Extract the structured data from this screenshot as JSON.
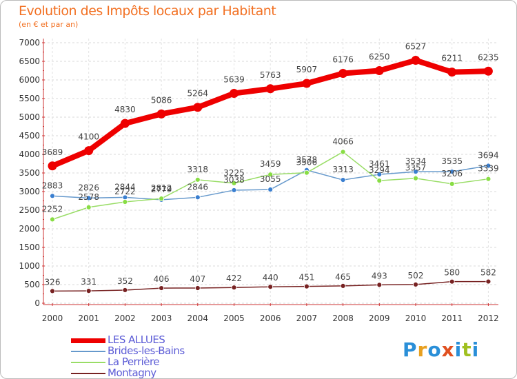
{
  "chart_data": {
    "type": "line",
    "title": "Evolution des Impôts locaux par Habitant",
    "subtitle": "(en € et par an)",
    "x": [
      "2000",
      "2001",
      "2002",
      "2003",
      "2004",
      "2005",
      "2006",
      "2007",
      "2008",
      "2009",
      "2010",
      "2011",
      "2012"
    ],
    "yticks": [
      "0",
      "500",
      "1000",
      "1500",
      "2000",
      "2500",
      "3000",
      "3500",
      "4000",
      "4500",
      "5000",
      "5500",
      "6000",
      "6500",
      "7000"
    ],
    "ylim": [
      0,
      7000
    ],
    "series": [
      {
        "name": "LES ALLUES",
        "color": "#ee0000",
        "values": [
          3689,
          4100,
          4830,
          5086,
          5264,
          5639,
          5763,
          5907,
          6176,
          6250,
          6527,
          6211,
          6235
        ]
      },
      {
        "name": "Brides-les-Bains",
        "color": "#6699cc",
        "values": [
          2883,
          2826,
          2844,
          2779,
          2846,
          3038,
          3055,
          3578,
          3313,
          3461,
          3534,
          3535,
          3694
        ]
      },
      {
        "name": "La Perrière",
        "color": "#99dd66",
        "values": [
          2252,
          2578,
          2722,
          2812,
          3318,
          3225,
          3459,
          3506,
          4066,
          3294,
          3357,
          3206,
          3339
        ]
      },
      {
        "name": "Montagny",
        "color": "#772222",
        "values": [
          326,
          331,
          352,
          406,
          407,
          422,
          440,
          451,
          465,
          493,
          502,
          580,
          582
        ]
      }
    ]
  },
  "logo": {
    "text": "Proxiti"
  }
}
